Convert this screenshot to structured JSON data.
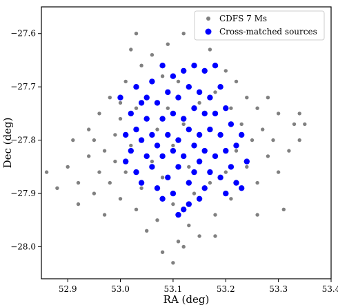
{
  "chart_data": {
    "type": "scatter",
    "xlabel": "RA (deg)",
    "ylabel": "Dec (deg)",
    "xlim": [
      52.85,
      53.4
    ],
    "ylim": [
      -28.06,
      -27.55
    ],
    "xticks": [
      52.9,
      53.0,
      53.1,
      53.2,
      53.3,
      53.4
    ],
    "yticks": [
      -27.6,
      -27.7,
      -27.8,
      -27.9,
      -28.0
    ],
    "xtick_labels": [
      "52.9",
      "53.0",
      "53.1",
      "53.2",
      "53.3",
      "53.4"
    ],
    "ytick_labels": [
      "−27.6",
      "−27.7",
      "−27.8",
      "−27.9",
      "−28.0"
    ],
    "legend_position": "top-right",
    "grid": false,
    "series": [
      {
        "name": "CDFS 7 Ms",
        "color": "#808080",
        "points": [
          [
            52.86,
            -27.86
          ],
          [
            52.88,
            -27.89
          ],
          [
            52.9,
            -27.85
          ],
          [
            52.91,
            -27.8
          ],
          [
            52.92,
            -27.88
          ],
          [
            52.92,
            -27.92
          ],
          [
            52.94,
            -27.78
          ],
          [
            52.94,
            -27.83
          ],
          [
            52.95,
            -27.9
          ],
          [
            52.96,
            -27.75
          ],
          [
            52.96,
            -27.86
          ],
          [
            52.97,
            -27.82
          ],
          [
            52.97,
            -27.94
          ],
          [
            52.98,
            -27.72
          ],
          [
            52.98,
            -27.88
          ],
          [
            52.99,
            -27.79
          ],
          [
            52.99,
            -27.84
          ],
          [
            53.0,
            -27.76
          ],
          [
            53.0,
            -27.91
          ],
          [
            53.01,
            -27.69
          ],
          [
            53.01,
            -27.86
          ],
          [
            53.02,
            -27.63
          ],
          [
            53.02,
            -27.81
          ],
          [
            53.03,
            -27.74
          ],
          [
            53.03,
            -27.93
          ],
          [
            53.04,
            -27.66
          ],
          [
            53.04,
            -27.89
          ],
          [
            53.05,
            -27.97
          ],
          [
            53.05,
            -27.72
          ],
          [
            53.06,
            -27.64
          ],
          [
            53.06,
            -27.84
          ],
          [
            53.07,
            -27.78
          ],
          [
            53.07,
            -27.95
          ],
          [
            53.08,
            -27.68
          ],
          [
            53.08,
            -27.87
          ],
          [
            53.09,
            -27.62
          ],
          [
            53.09,
            -27.74
          ],
          [
            53.1,
            -27.81
          ],
          [
            53.1,
            -27.92
          ],
          [
            53.11,
            -27.99
          ],
          [
            53.11,
            -27.69
          ],
          [
            53.12,
            -27.6
          ],
          [
            53.12,
            -27.77
          ],
          [
            53.13,
            -27.85
          ],
          [
            53.13,
            -27.96
          ],
          [
            53.14,
            -27.66
          ],
          [
            53.14,
            -27.9
          ],
          [
            53.15,
            -27.73
          ],
          [
            53.15,
            -27.98
          ],
          [
            53.16,
            -27.82
          ],
          [
            53.17,
            -27.63
          ],
          [
            53.17,
            -27.88
          ],
          [
            53.18,
            -27.71
          ],
          [
            53.18,
            -27.94
          ],
          [
            53.19,
            -27.79
          ],
          [
            53.2,
            -27.67
          ],
          [
            53.2,
            -27.86
          ],
          [
            53.21,
            -27.74
          ],
          [
            53.21,
            -27.91
          ],
          [
            53.22,
            -27.69
          ],
          [
            53.22,
            -27.82
          ],
          [
            53.23,
            -27.77
          ],
          [
            53.23,
            -27.89
          ],
          [
            53.24,
            -27.72
          ],
          [
            53.24,
            -27.85
          ],
          [
            53.25,
            -27.8
          ],
          [
            53.26,
            -27.74
          ],
          [
            53.26,
            -27.88
          ],
          [
            53.27,
            -27.78
          ],
          [
            53.28,
            -27.83
          ],
          [
            53.28,
            -27.72
          ],
          [
            53.29,
            -27.8
          ],
          [
            53.3,
            -27.75
          ],
          [
            53.3,
            -27.86
          ],
          [
            53.31,
            -27.93
          ],
          [
            53.32,
            -27.82
          ],
          [
            53.33,
            -27.77
          ],
          [
            53.34,
            -27.8
          ],
          [
            53.34,
            -27.75
          ],
          [
            53.35,
            -27.77
          ],
          [
            53.08,
            -28.01
          ],
          [
            53.1,
            -28.03
          ],
          [
            53.12,
            -28.0
          ],
          [
            53.03,
            -27.6
          ],
          [
            53.0,
            -27.73
          ],
          [
            53.18,
            -27.98
          ],
          [
            53.26,
            -27.94
          ],
          [
            52.95,
            -27.8
          ]
        ]
      },
      {
        "name": "Cross-matched sources",
        "color": "#0000ff",
        "points": [
          [
            53.0,
            -27.72
          ],
          [
            53.01,
            -27.79
          ],
          [
            53.01,
            -27.84
          ],
          [
            53.02,
            -27.75
          ],
          [
            53.02,
            -27.82
          ],
          [
            53.03,
            -27.7
          ],
          [
            53.03,
            -27.78
          ],
          [
            53.03,
            -27.86
          ],
          [
            53.04,
            -27.73
          ],
          [
            53.04,
            -27.8
          ],
          [
            53.04,
            -27.88
          ],
          [
            53.05,
            -27.76
          ],
          [
            53.05,
            -27.83
          ],
          [
            53.06,
            -27.69
          ],
          [
            53.06,
            -27.79
          ],
          [
            53.06,
            -27.85
          ],
          [
            53.07,
            -27.73
          ],
          [
            53.07,
            -27.81
          ],
          [
            53.07,
            -27.89
          ],
          [
            53.08,
            -27.66
          ],
          [
            53.08,
            -27.76
          ],
          [
            53.08,
            -27.83
          ],
          [
            53.09,
            -27.71
          ],
          [
            53.09,
            -27.79
          ],
          [
            53.09,
            -27.87
          ],
          [
            53.1,
            -27.68
          ],
          [
            53.1,
            -27.75
          ],
          [
            53.1,
            -27.82
          ],
          [
            53.1,
            -27.9
          ],
          [
            53.11,
            -27.72
          ],
          [
            53.11,
            -27.8
          ],
          [
            53.11,
            -27.85
          ],
          [
            53.12,
            -27.67
          ],
          [
            53.12,
            -27.76
          ],
          [
            53.12,
            -27.83
          ],
          [
            53.12,
            -27.93
          ],
          [
            53.13,
            -27.7
          ],
          [
            53.13,
            -27.78
          ],
          [
            53.13,
            -27.88
          ],
          [
            53.14,
            -27.66
          ],
          [
            53.14,
            -27.74
          ],
          [
            53.14,
            -27.81
          ],
          [
            53.14,
            -27.86
          ],
          [
            53.15,
            -27.71
          ],
          [
            53.15,
            -27.79
          ],
          [
            53.15,
            -27.84
          ],
          [
            53.16,
            -27.67
          ],
          [
            53.16,
            -27.75
          ],
          [
            53.16,
            -27.82
          ],
          [
            53.16,
            -27.89
          ],
          [
            53.17,
            -27.72
          ],
          [
            53.17,
            -27.78
          ],
          [
            53.17,
            -27.86
          ],
          [
            53.18,
            -27.66
          ],
          [
            53.18,
            -27.75
          ],
          [
            53.18,
            -27.83
          ],
          [
            53.19,
            -27.7
          ],
          [
            53.19,
            -27.79
          ],
          [
            53.19,
            -27.87
          ],
          [
            53.2,
            -27.74
          ],
          [
            53.2,
            -27.82
          ],
          [
            53.2,
            -27.9
          ],
          [
            53.21,
            -27.77
          ],
          [
            53.21,
            -27.85
          ],
          [
            53.22,
            -27.81
          ],
          [
            53.22,
            -27.88
          ],
          [
            53.23,
            -27.79
          ],
          [
            53.24,
            -27.84
          ],
          [
            53.15,
            -27.91
          ],
          [
            53.13,
            -27.92
          ],
          [
            53.08,
            -27.91
          ],
          [
            53.11,
            -27.94
          ],
          [
            53.05,
            -27.72
          ],
          [
            53.23,
            -27.89
          ]
        ]
      }
    ]
  }
}
